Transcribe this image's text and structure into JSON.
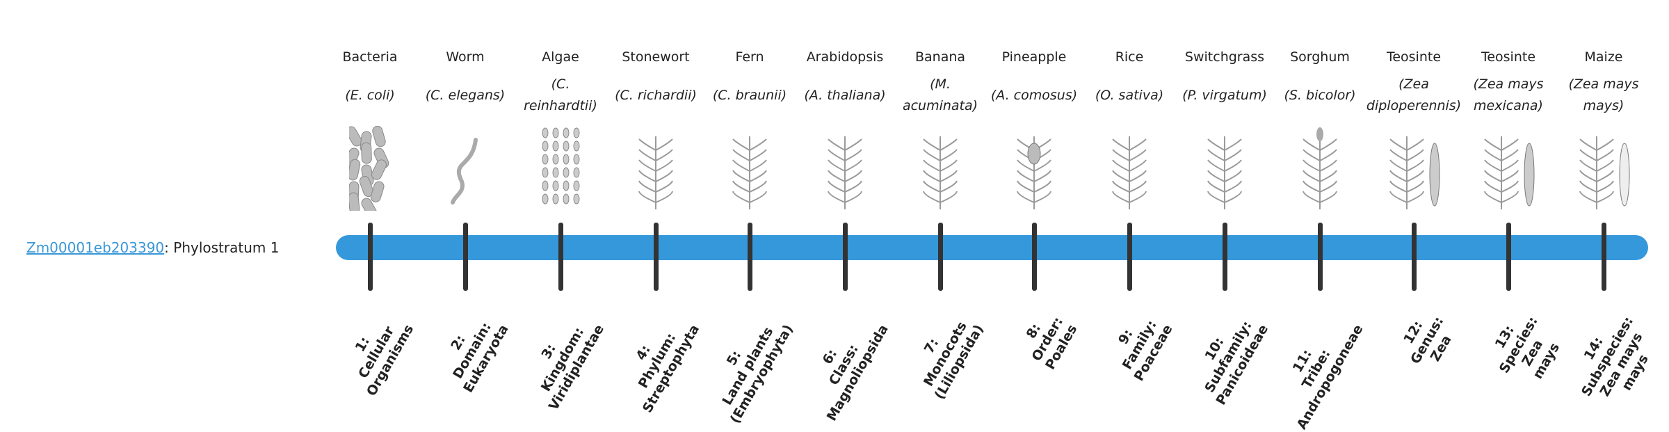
{
  "gene": {
    "id": "Zm00001eb203390",
    "suffix": ": Phylostratum 1"
  },
  "colors": {
    "bar": "#3598db",
    "tick": "#333333",
    "link": "#3a97d6"
  },
  "strata": [
    {
      "common": "Bacteria",
      "scientific": "(E. coli)",
      "label": "1:\nCellular\nOrganisms",
      "icon": "bacteria"
    },
    {
      "common": "Worm",
      "scientific": "(C. elegans)",
      "label": "2:\nDomain:\nEukaryota",
      "icon": "worm"
    },
    {
      "common": "Algae",
      "scientific": "(C. reinhardtii)",
      "label": "3:\nKingdom:\nViridiplantae",
      "icon": "algae"
    },
    {
      "common": "Stonewort",
      "scientific": "(C. richardii)",
      "label": "4:\nPhylum:\nStreptophyta",
      "icon": "stonewort"
    },
    {
      "common": "Fern",
      "scientific": "(C. braunii)",
      "label": "5:\nLand plants\n(Embryophyta)",
      "icon": "fern"
    },
    {
      "common": "Arabidopsis",
      "scientific": "(A. thaliana)",
      "label": "6:\nClass:\nMagnoliopsida",
      "icon": "arabidopsis"
    },
    {
      "common": "Banana",
      "scientific": "(M. acuminata)",
      "label": "7:\nMonocots\n(Liliopsida)",
      "icon": "banana"
    },
    {
      "common": "Pineapple",
      "scientific": "(A. comosus)",
      "label": "8:\nOrder:\nPoales",
      "icon": "pineapple"
    },
    {
      "common": "Rice",
      "scientific": "(O. sativa)",
      "label": "9:\nFamily:\nPoaceae",
      "icon": "rice"
    },
    {
      "common": "Switchgrass",
      "scientific": "(P. virgatum)",
      "label": "10:\nSubfamily:\nPanicoideae",
      "icon": "switchgrass"
    },
    {
      "common": "Sorghum",
      "scientific": "(S. bicolor)",
      "label": "11:\nTribe:\nAndropogoneae",
      "icon": "sorghum"
    },
    {
      "common": "Teosinte",
      "scientific": "(Zea diploperennis)",
      "label": "12:\nGenus:\nZea",
      "icon": "teosinte"
    },
    {
      "common": "Teosinte",
      "scientific": "(Zea mays mexicana)",
      "label": "13:\nSpecies:\nZea\nmays",
      "icon": "teosinte"
    },
    {
      "common": "Maize",
      "scientific": "(Zea mays mays)",
      "label": "14:\nSubspecies:\nZea mays\nmays",
      "icon": "maize"
    }
  ]
}
